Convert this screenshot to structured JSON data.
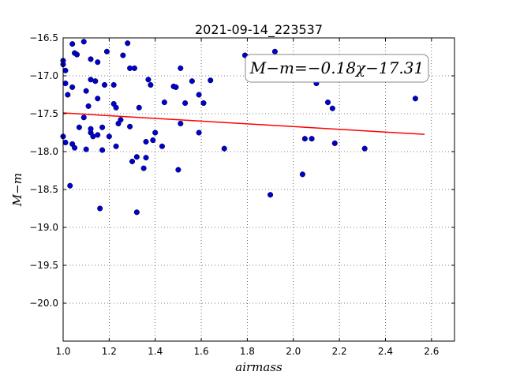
{
  "chart_data": {
    "type": "scatter",
    "title": "2021-09-14_223537",
    "xlabel": "airmass",
    "ylabel": "M−m",
    "xlim": [
      1.0,
      2.7
    ],
    "ylim": [
      -20.5,
      -16.5
    ],
    "y_inverted": true,
    "grid": true,
    "x_ticks": [
      1.0,
      1.2,
      1.4,
      1.6,
      1.8,
      2.0,
      2.2,
      2.4,
      2.6
    ],
    "x_tick_labels": [
      "1.0",
      "1.2",
      "1.4",
      "1.6",
      "1.8",
      "2.0",
      "2.2",
      "2.4",
      "2.6"
    ],
    "y_ticks": [
      -16.5,
      -17.0,
      -17.5,
      -18.0,
      -18.5,
      -19.0,
      -19.5,
      -20.0
    ],
    "y_tick_labels": [
      "−16.5",
      "−17.0",
      "−17.5",
      "−18.0",
      "−18.5",
      "−19.0",
      "−19.5",
      "−20.0"
    ],
    "point_color": "#0000cc",
    "fit_color": "#ff0000",
    "fit": {
      "label": "M−m=−0.18χ−17.31",
      "slope": -0.18,
      "intercept": -17.31,
      "x_range": [
        1.0,
        2.57
      ]
    },
    "points": [
      {
        "x": 1.0,
        "y": -16.85
      },
      {
        "x": 1.0,
        "y": -16.8
      },
      {
        "x": 1.0,
        "y": -17.8
      },
      {
        "x": 1.01,
        "y": -16.93
      },
      {
        "x": 1.01,
        "y": -17.1
      },
      {
        "x": 1.01,
        "y": -17.88
      },
      {
        "x": 1.02,
        "y": -17.25
      },
      {
        "x": 1.03,
        "y": -18.45
      },
      {
        "x": 1.04,
        "y": -16.58
      },
      {
        "x": 1.04,
        "y": -17.15
      },
      {
        "x": 1.04,
        "y": -17.9
      },
      {
        "x": 1.05,
        "y": -16.7
      },
      {
        "x": 1.05,
        "y": -17.95
      },
      {
        "x": 1.06,
        "y": -16.72
      },
      {
        "x": 1.07,
        "y": -17.68
      },
      {
        "x": 1.09,
        "y": -16.55
      },
      {
        "x": 1.09,
        "y": -17.55
      },
      {
        "x": 1.1,
        "y": -17.2
      },
      {
        "x": 1.1,
        "y": -17.97
      },
      {
        "x": 1.11,
        "y": -17.4
      },
      {
        "x": 1.12,
        "y": -16.78
      },
      {
        "x": 1.12,
        "y": -17.05
      },
      {
        "x": 1.12,
        "y": -17.7
      },
      {
        "x": 1.12,
        "y": -17.75
      },
      {
        "x": 1.13,
        "y": -17.8
      },
      {
        "x": 1.14,
        "y": -17.07
      },
      {
        "x": 1.15,
        "y": -16.82
      },
      {
        "x": 1.15,
        "y": -17.3
      },
      {
        "x": 1.15,
        "y": -17.78
      },
      {
        "x": 1.16,
        "y": -18.75
      },
      {
        "x": 1.17,
        "y": -17.68
      },
      {
        "x": 1.17,
        "y": -17.98
      },
      {
        "x": 1.18,
        "y": -17.12
      },
      {
        "x": 1.19,
        "y": -16.68
      },
      {
        "x": 1.2,
        "y": -17.8
      },
      {
        "x": 1.22,
        "y": -17.12
      },
      {
        "x": 1.22,
        "y": -17.37
      },
      {
        "x": 1.23,
        "y": -17.42
      },
      {
        "x": 1.23,
        "y": -17.93
      },
      {
        "x": 1.24,
        "y": -17.63
      },
      {
        "x": 1.25,
        "y": -17.58
      },
      {
        "x": 1.26,
        "y": -16.73
      },
      {
        "x": 1.28,
        "y": -16.57
      },
      {
        "x": 1.29,
        "y": -16.9
      },
      {
        "x": 1.29,
        "y": -17.67
      },
      {
        "x": 1.3,
        "y": -18.13
      },
      {
        "x": 1.31,
        "y": -16.9
      },
      {
        "x": 1.32,
        "y": -18.07
      },
      {
        "x": 1.32,
        "y": -18.8
      },
      {
        "x": 1.33,
        "y": -17.42
      },
      {
        "x": 1.35,
        "y": -18.22
      },
      {
        "x": 1.36,
        "y": -17.87
      },
      {
        "x": 1.36,
        "y": -18.08
      },
      {
        "x": 1.37,
        "y": -17.05
      },
      {
        "x": 1.38,
        "y": -17.12
      },
      {
        "x": 1.39,
        "y": -17.85
      },
      {
        "x": 1.4,
        "y": -17.75
      },
      {
        "x": 1.43,
        "y": -17.93
      },
      {
        "x": 1.44,
        "y": -17.35
      },
      {
        "x": 1.48,
        "y": -17.14
      },
      {
        "x": 1.49,
        "y": -17.15
      },
      {
        "x": 1.5,
        "y": -18.24
      },
      {
        "x": 1.51,
        "y": -16.9
      },
      {
        "x": 1.51,
        "y": -17.63
      },
      {
        "x": 1.53,
        "y": -17.36
      },
      {
        "x": 1.56,
        "y": -17.07
      },
      {
        "x": 1.59,
        "y": -17.25
      },
      {
        "x": 1.59,
        "y": -17.75
      },
      {
        "x": 1.61,
        "y": -17.36
      },
      {
        "x": 1.64,
        "y": -17.06
      },
      {
        "x": 1.7,
        "y": -17.96
      },
      {
        "x": 1.79,
        "y": -16.73
      },
      {
        "x": 1.9,
        "y": -18.57
      },
      {
        "x": 1.92,
        "y": -16.68
      },
      {
        "x": 2.04,
        "y": -18.3
      },
      {
        "x": 2.05,
        "y": -17.83
      },
      {
        "x": 2.08,
        "y": -17.83
      },
      {
        "x": 2.1,
        "y": -17.1
      },
      {
        "x": 2.15,
        "y": -17.35
      },
      {
        "x": 2.17,
        "y": -17.43
      },
      {
        "x": 2.18,
        "y": -17.89
      },
      {
        "x": 2.31,
        "y": -17.96
      },
      {
        "x": 2.53,
        "y": -17.3
      }
    ]
  }
}
